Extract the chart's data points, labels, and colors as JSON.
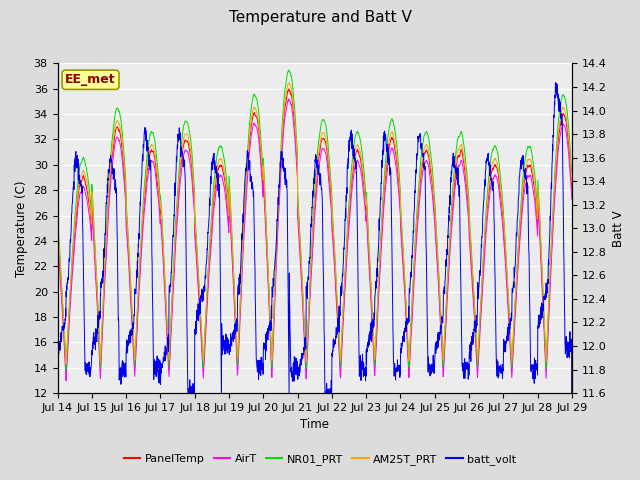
{
  "title": "Temperature and Batt V",
  "xlabel": "Time",
  "ylabel_left": "Temperature (C)",
  "ylabel_right": "Batt V",
  "ylim_left": [
    12,
    38
  ],
  "ylim_right": [
    11.6,
    14.4
  ],
  "x_tick_labels": [
    "Jul 14",
    "Jul 15",
    "Jul 16",
    "Jul 17",
    "Jul 18",
    "Jul 19",
    "Jul 20",
    "Jul 21",
    "Jul 22",
    "Jul 23",
    "Jul 24",
    "Jul 25",
    "Jul 26",
    "Jul 27",
    "Jul 28",
    "Jul 29"
  ],
  "yticks_left": [
    12,
    14,
    16,
    18,
    20,
    22,
    24,
    26,
    28,
    30,
    32,
    34,
    36,
    38
  ],
  "yticks_right": [
    11.6,
    11.8,
    12.0,
    12.2,
    12.4,
    12.6,
    12.8,
    13.0,
    13.2,
    13.4,
    13.6,
    13.8,
    14.0,
    14.2,
    14.4
  ],
  "annotation_text": "EE_met",
  "annotation_color": "#8B0000",
  "annotation_bg": "#FFFF99",
  "annotation_edge": "#999900",
  "background_color": "#DCDCDC",
  "plot_bg_light": "#F5F5F5",
  "plot_bg_dark": "#E0E0E0",
  "grid_color": "#FFFFFF",
  "series_colors": {
    "PanelTemp": "#FF0000",
    "AirT": "#FF00FF",
    "NR01_PRT": "#00DD00",
    "AM25T_PRT": "#FFA500",
    "batt_volt": "#0000EE"
  },
  "day_peaks_temp": [
    29,
    33,
    31,
    32,
    30,
    34,
    36,
    32,
    31,
    32,
    31,
    31,
    30,
    30,
    34
  ],
  "day_peaks_batt_max": [
    13.6,
    13.6,
    13.8,
    13.8,
    13.6,
    13.6,
    13.6,
    13.6,
    13.8,
    13.8,
    13.8,
    13.6,
    13.6,
    13.6,
    14.2
  ],
  "day_peaks_batt_min": [
    11.8,
    11.8,
    11.8,
    11.6,
    12.0,
    11.8,
    11.8,
    11.6,
    11.8,
    11.8,
    11.8,
    11.8,
    11.8,
    11.8,
    12.0
  ]
}
